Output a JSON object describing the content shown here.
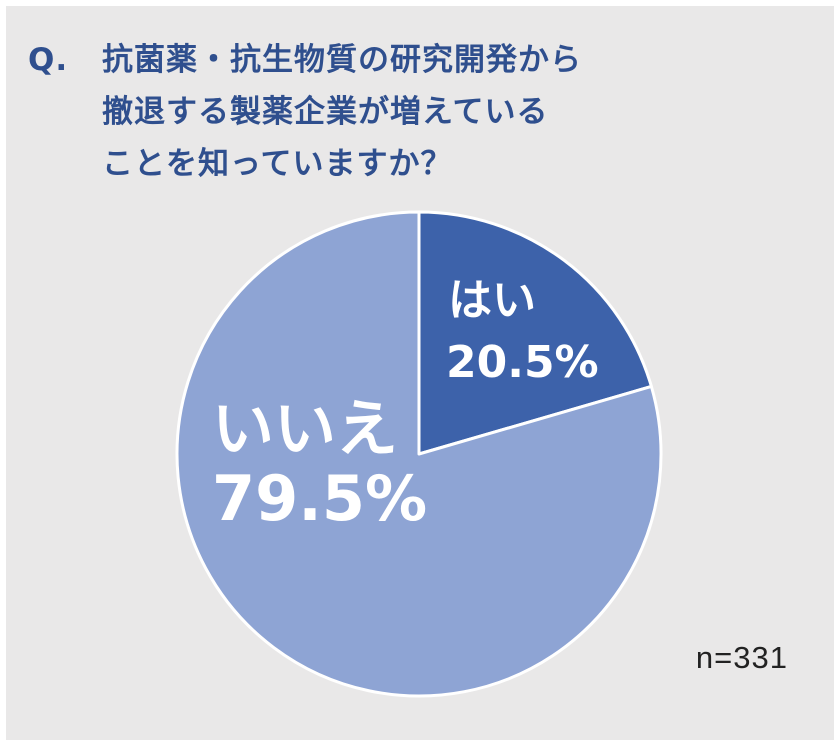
{
  "question": {
    "prefix": "Q.",
    "text": "抗菌薬・抗生物質の研究開発から\n撤退する製薬企業が増えている\nことを知っていますか？"
  },
  "sample_size": "n=331",
  "colors": {
    "panel_background": "#e9e8e8",
    "title": "#2f4f8e",
    "yes_slice": "#3d62aa",
    "no_slice": "#8ea4d4",
    "slice_border": "#ffffff",
    "label_text": "#ffffff"
  },
  "chart_data": {
    "type": "pie",
    "title": "抗菌薬・抗生物質の研究開発から撤退する製薬企業が増えていることを知っていますか？",
    "start_angle_deg": 0,
    "direction": "clockwise",
    "slices": [
      {
        "label": "はい",
        "value": 20.5,
        "value_label": "20.5%",
        "color": "#3d62aa"
      },
      {
        "label": "いいえ",
        "value": 79.5,
        "value_label": "79.5%",
        "color": "#8ea4d4"
      }
    ],
    "n": 331
  }
}
